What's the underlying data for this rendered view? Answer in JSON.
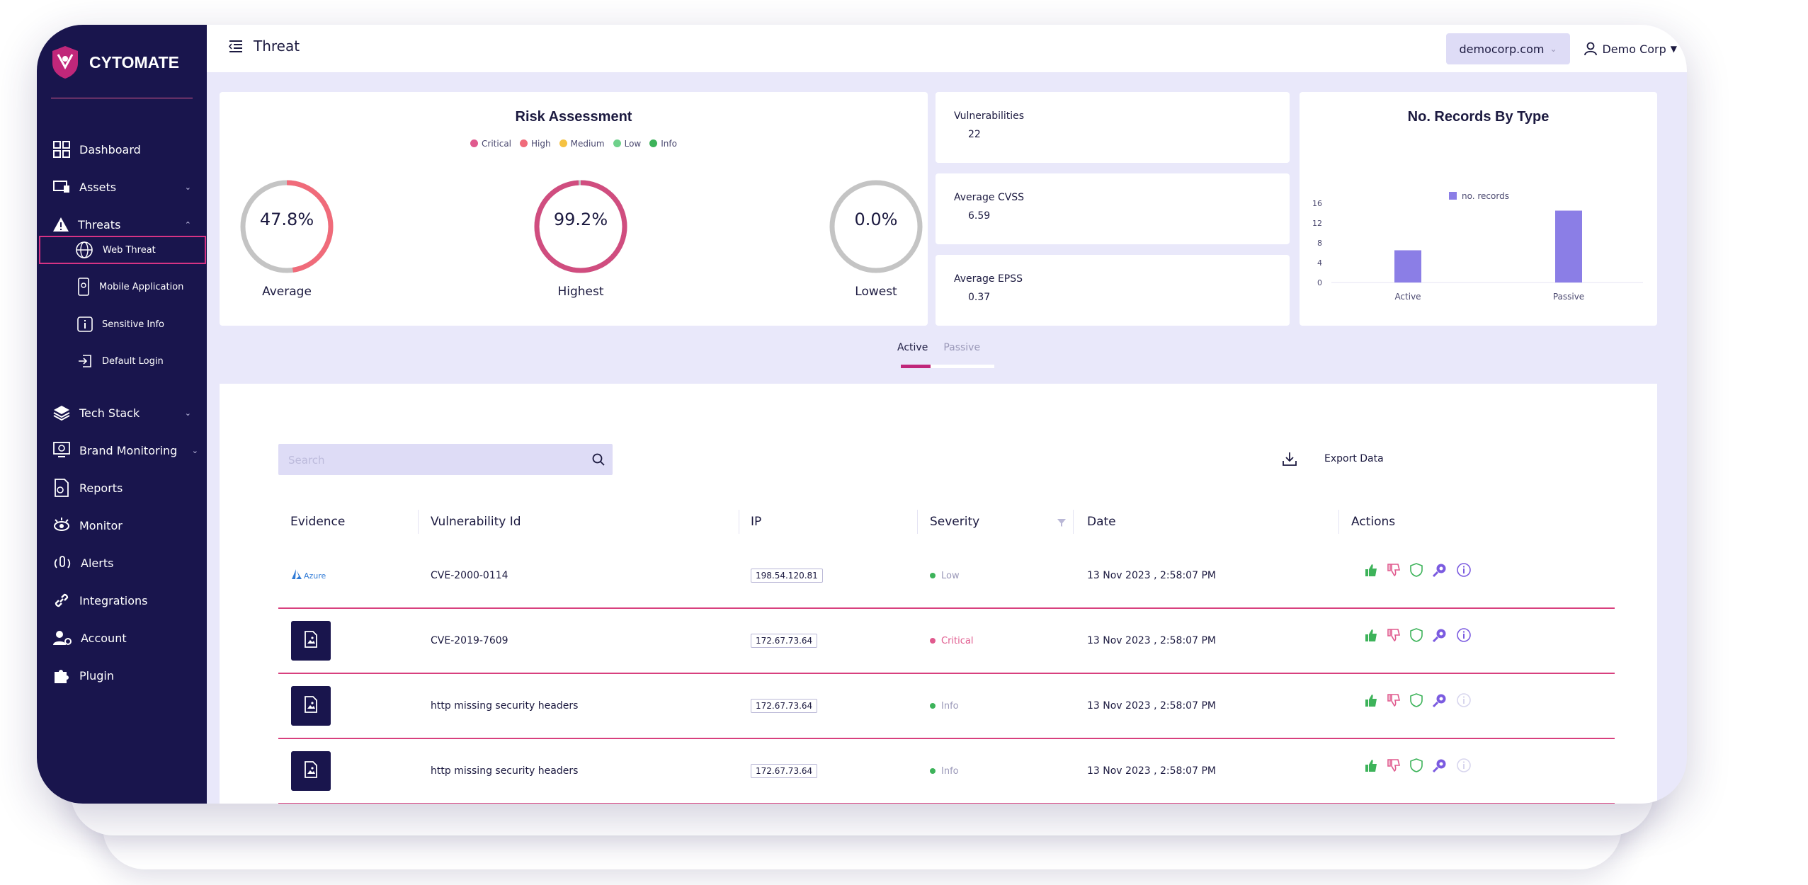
{
  "brand": {
    "name": "CYTOMATE"
  },
  "sidebar": {
    "items": [
      {
        "label": "Dashboard",
        "icon": "dashboard-icon"
      },
      {
        "label": "Assets",
        "icon": "assets-icon",
        "expandable": true
      },
      {
        "label": "Threats",
        "icon": "warning-icon",
        "expanded": true
      },
      {
        "label": "Tech Stack",
        "icon": "layers-icon",
        "expandable": true
      },
      {
        "label": "Brand Monitoring",
        "icon": "brand-monitor-icon",
        "expandable": true
      },
      {
        "label": "Reports",
        "icon": "reports-icon"
      },
      {
        "label": "Monitor",
        "icon": "eye-icon"
      },
      {
        "label": "Alerts",
        "icon": "alert-icon"
      },
      {
        "label": "Integrations",
        "icon": "link-icon"
      },
      {
        "label": "Account",
        "icon": "account-icon"
      },
      {
        "label": "Plugin",
        "icon": "puzzle-icon"
      }
    ],
    "threat_subitems": [
      {
        "label": "Web Threat",
        "icon": "web-threat-icon",
        "active": true
      },
      {
        "label": "Mobile Application",
        "icon": "mobile-icon"
      },
      {
        "label": "Sensitive Info",
        "icon": "info-icon"
      },
      {
        "label": "Default Login",
        "icon": "login-icon"
      }
    ]
  },
  "header": {
    "title": "Threat",
    "domain": "democorp.com",
    "user": "Demo Corp"
  },
  "risk": {
    "title": "Risk Assessment",
    "legend": [
      {
        "label": "Critical",
        "color": "#e05a8e"
      },
      {
        "label": "High",
        "color": "#f06b7a"
      },
      {
        "label": "Medium",
        "color": "#f5c242"
      },
      {
        "label": "Low",
        "color": "#6fd18b"
      },
      {
        "label": "Info",
        "color": "#3db35a"
      }
    ],
    "gauges": [
      {
        "value": "47.8%",
        "label": "Average",
        "fraction": 0.478,
        "color": "#f06b7a"
      },
      {
        "value": "99.2%",
        "label": "Highest",
        "fraction": 0.992,
        "color": "#d04d7f"
      },
      {
        "value": "0.0%",
        "label": "Lowest",
        "fraction": 0.0,
        "color": "#c0c0c0"
      }
    ]
  },
  "stats": [
    {
      "label": "Vulnerabilities",
      "value": "22"
    },
    {
      "label": "Average CVSS",
      "value": "6.59"
    },
    {
      "label": "Average EPSS",
      "value": "0.37"
    }
  ],
  "records_chart": {
    "title": "No. Records By Type",
    "legend": "no. records",
    "yticks": [
      "16",
      "12",
      "8",
      "4",
      "0"
    ]
  },
  "chart_data": {
    "type": "bar",
    "title": "No. Records By Type",
    "categories": [
      "Active",
      "Passive"
    ],
    "series": [
      {
        "name": "no. records",
        "values": [
          6.5,
          14.5
        ]
      }
    ],
    "ylim": [
      0,
      16
    ],
    "grid": false,
    "legend": "top-center",
    "color": "#8b7ee6"
  },
  "tabs": {
    "active": "Active",
    "inactive": "Passive"
  },
  "search": {
    "placeholder": "Search",
    "value": ""
  },
  "export_label": "Export Data",
  "table": {
    "headers": [
      "Evidence",
      "Vulnerability Id",
      "IP",
      "Severity",
      "Date",
      "Actions"
    ],
    "rows": [
      {
        "evidence": "Azure",
        "vuln": "CVE-2000-0114",
        "ip": "198.54.120.81",
        "severity": "Low",
        "sev_color": "#3db35a",
        "sev_text_color": "#9a98b8",
        "date": "13 Nov 2023 , 2:58:07 PM",
        "info_active": true
      },
      {
        "evidence": "doc",
        "vuln": "CVE-2019-7609",
        "ip": "172.67.73.64",
        "severity": "Critical",
        "sev_color": "#e05a8e",
        "sev_text_color": "#e05a8e",
        "date": "13 Nov 2023 , 2:58:07 PM",
        "info_active": true
      },
      {
        "evidence": "doc",
        "vuln": "http missing security headers",
        "ip": "172.67.73.64",
        "severity": "Info",
        "sev_color": "#3db35a",
        "sev_text_color": "#9a98b8",
        "date": "13 Nov 2023 , 2:58:07 PM",
        "info_active": false
      },
      {
        "evidence": "doc",
        "vuln": "http missing security headers",
        "ip": "172.67.73.64",
        "severity": "Info",
        "sev_color": "#3db35a",
        "sev_text_color": "#9a98b8",
        "date": "13 Nov 2023 , 2:58:07 PM",
        "info_active": false
      }
    ]
  }
}
